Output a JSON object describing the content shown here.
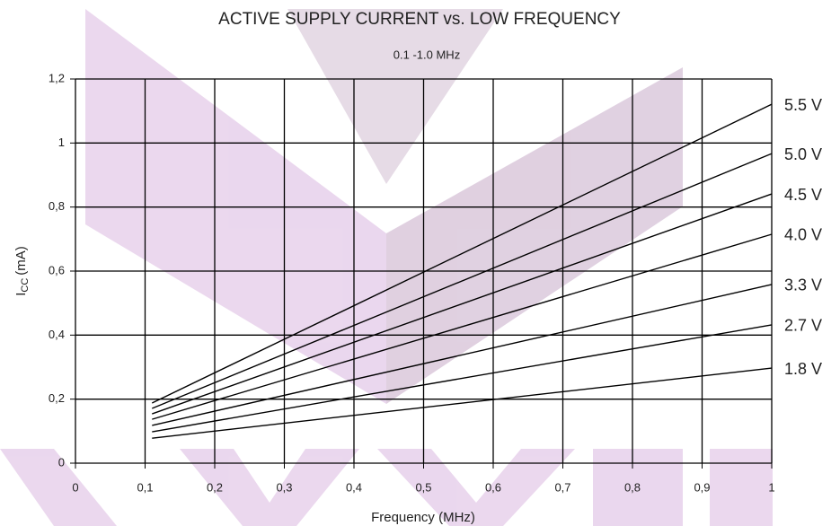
{
  "chart_data": {
    "type": "line",
    "title": "ACTIVE SUPPLY CURRENT vs. LOW FREQUENCY",
    "subtitle": "0.1 -1.0 MHz",
    "xlabel": "Frequency (MHz)",
    "ylabel": {
      "main": "I",
      "sub": "CC",
      "unit": "(mA)"
    },
    "x": [
      0.11,
      1
    ],
    "series": [
      {
        "name": "5.5 V",
        "color": "#000000",
        "values": [
          0.188,
          1.121
        ]
      },
      {
        "name": "5.0 V",
        "color": "#000000",
        "values": [
          0.171,
          0.967
        ]
      },
      {
        "name": "4.5 V",
        "color": "#000000",
        "values": [
          0.154,
          0.841
        ]
      },
      {
        "name": "4.0 V",
        "color": "#000000",
        "values": [
          0.137,
          0.715
        ]
      },
      {
        "name": "3.3 V",
        "color": "#000000",
        "values": [
          0.118,
          0.558
        ]
      },
      {
        "name": "2.7 V",
        "color": "#000000",
        "values": [
          0.098,
          0.432
        ]
      },
      {
        "name": "1.8 V",
        "color": "#000000",
        "values": [
          0.078,
          0.297
        ]
      }
    ],
    "xlim": [
      0,
      1
    ],
    "ylim": [
      0,
      1.2
    ],
    "xticks": [
      0,
      {
        "value": 0.1,
        "label": "0,1"
      },
      {
        "value": 0.2,
        "label": "0,2"
      },
      {
        "value": 0.3,
        "label": "0,3"
      },
      {
        "value": 0.4,
        "label": "0,4"
      },
      {
        "value": 0.5,
        "label": "0,5"
      },
      {
        "value": 0.6,
        "label": "0,6"
      },
      {
        "value": 0.7,
        "label": "0,7"
      },
      {
        "value": 0.8,
        "label": "0,8"
      },
      {
        "value": 0.9,
        "label": "0,9"
      },
      1
    ],
    "yticks": [
      0,
      {
        "value": 0.2,
        "label": "0,2"
      },
      {
        "value": 0.4,
        "label": "0,4"
      },
      {
        "value": 0.6,
        "label": "0,6"
      },
      {
        "value": 0.8,
        "label": "0,8"
      },
      1,
      {
        "value": 1.2,
        "label": "1,2"
      }
    ],
    "grid": true
  }
}
